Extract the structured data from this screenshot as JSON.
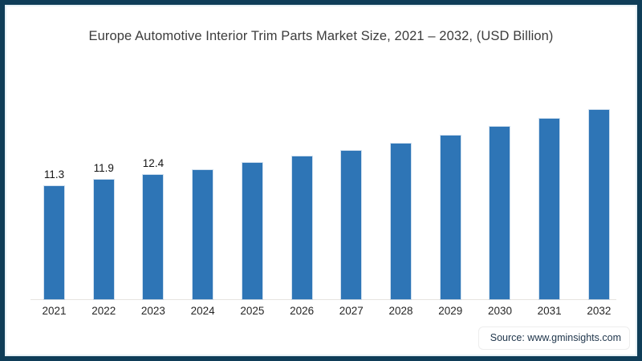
{
  "title": "Europe Automotive Interior Trim Parts Market Size, 2021 – 2032, (USD Billion)",
  "source": "Source: www.gminsights.com",
  "colors": {
    "frame_border": "#0f3d58",
    "frame_inner_line": "#e7f1f5",
    "bar": "#2e75b6",
    "axis_line": "#e6e4e0",
    "title_text": "#3c3c3c",
    "source_text": "#21374d"
  },
  "chart_data": {
    "type": "bar",
    "title": "Europe Automotive Interior Trim Parts Market Size, 2021 – 2032, (USD Billion)",
    "xlabel": "",
    "ylabel": "",
    "categories": [
      "2021",
      "2022",
      "2023",
      "2024",
      "2025",
      "2026",
      "2027",
      "2028",
      "2029",
      "2030",
      "2031",
      "2032"
    ],
    "values": [
      11.3,
      11.9,
      12.4,
      12.9,
      13.6,
      14.2,
      14.8,
      15.5,
      16.3,
      17.2,
      18.0,
      18.9
    ],
    "value_labels": [
      "11.3",
      "11.9",
      "12.4",
      "",
      "",
      "",
      "",
      "",
      "",
      "",
      "",
      ""
    ],
    "bar_color": "#2e75b6",
    "grid": false,
    "legend": "none",
    "baseline_value": 0,
    "notes": "Only 2021–2023 bars carry printed data labels; later values estimated from bar heights"
  }
}
